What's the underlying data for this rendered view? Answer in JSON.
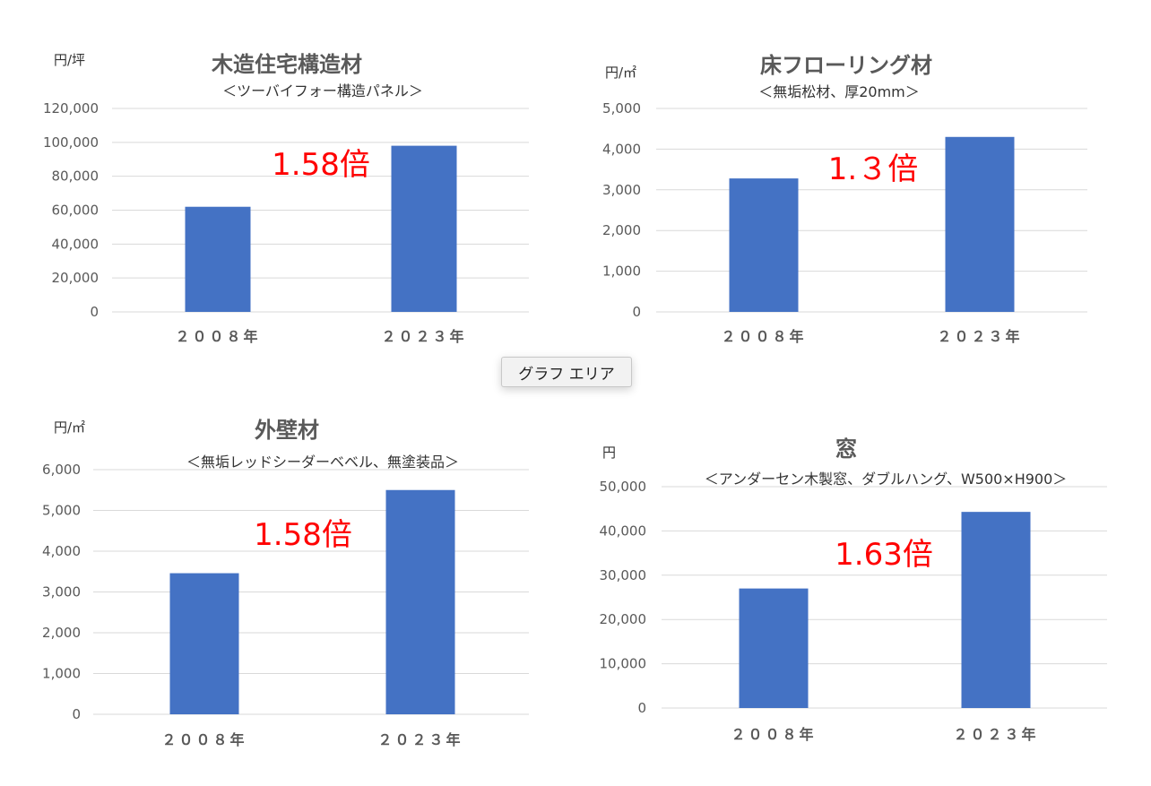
{
  "tooltip": "グラフ エリア",
  "chart_data": [
    {
      "type": "bar",
      "title": "木造住宅構造材",
      "subtitle": "＜ツーバイフォー構造パネル＞",
      "unit": "円/坪",
      "categories": [
        "２００８年",
        "２０２３年"
      ],
      "values": [
        62000,
        98000
      ],
      "ylim": [
        0,
        120000
      ],
      "yticks": [
        "0",
        "20,000",
        "40,000",
        "60,000",
        "80,000",
        "100,000",
        "120,000"
      ],
      "annotation": "1.58倍",
      "bar_color": "#4472c4",
      "annotation_color": "#ff0000",
      "grid": true
    },
    {
      "type": "bar",
      "title": "床フローリング材",
      "subtitle": "＜無垢松材、厚20mm＞",
      "unit": "円/㎡",
      "categories": [
        "２００８年",
        "２０２３年"
      ],
      "values": [
        3280,
        4300
      ],
      "ylim": [
        0,
        5000
      ],
      "yticks": [
        "0",
        "1,000",
        "2,000",
        "3,000",
        "4,000",
        "5,000"
      ],
      "annotation": "1.３倍",
      "bar_color": "#4472c4",
      "annotation_color": "#ff0000",
      "grid": true
    },
    {
      "type": "bar",
      "title": "外壁材",
      "subtitle": "＜無垢レッドシーダーベベル、無塗装品＞",
      "unit": "円/㎡",
      "categories": [
        "２００８年",
        "２０２３年"
      ],
      "values": [
        3460,
        5500
      ],
      "ylim": [
        0,
        6000
      ],
      "yticks": [
        "0",
        "1,000",
        "2,000",
        "3,000",
        "4,000",
        "5,000",
        "6,000"
      ],
      "annotation": "1.58倍",
      "bar_color": "#4472c4",
      "annotation_color": "#ff0000",
      "grid": true
    },
    {
      "type": "bar",
      "title": "窓",
      "subtitle": "＜アンダーセン木製窓、ダブルハング、W500×H900＞",
      "unit": "円",
      "categories": [
        "２００８年",
        "２０２３年"
      ],
      "values": [
        27000,
        44300
      ],
      "ylim": [
        0,
        50000
      ],
      "yticks": [
        "0",
        "10,000",
        "20,000",
        "30,000",
        "40,000",
        "50,000"
      ],
      "annotation": "1.63倍",
      "bar_color": "#4472c4",
      "annotation_color": "#ff0000",
      "grid": true
    }
  ]
}
